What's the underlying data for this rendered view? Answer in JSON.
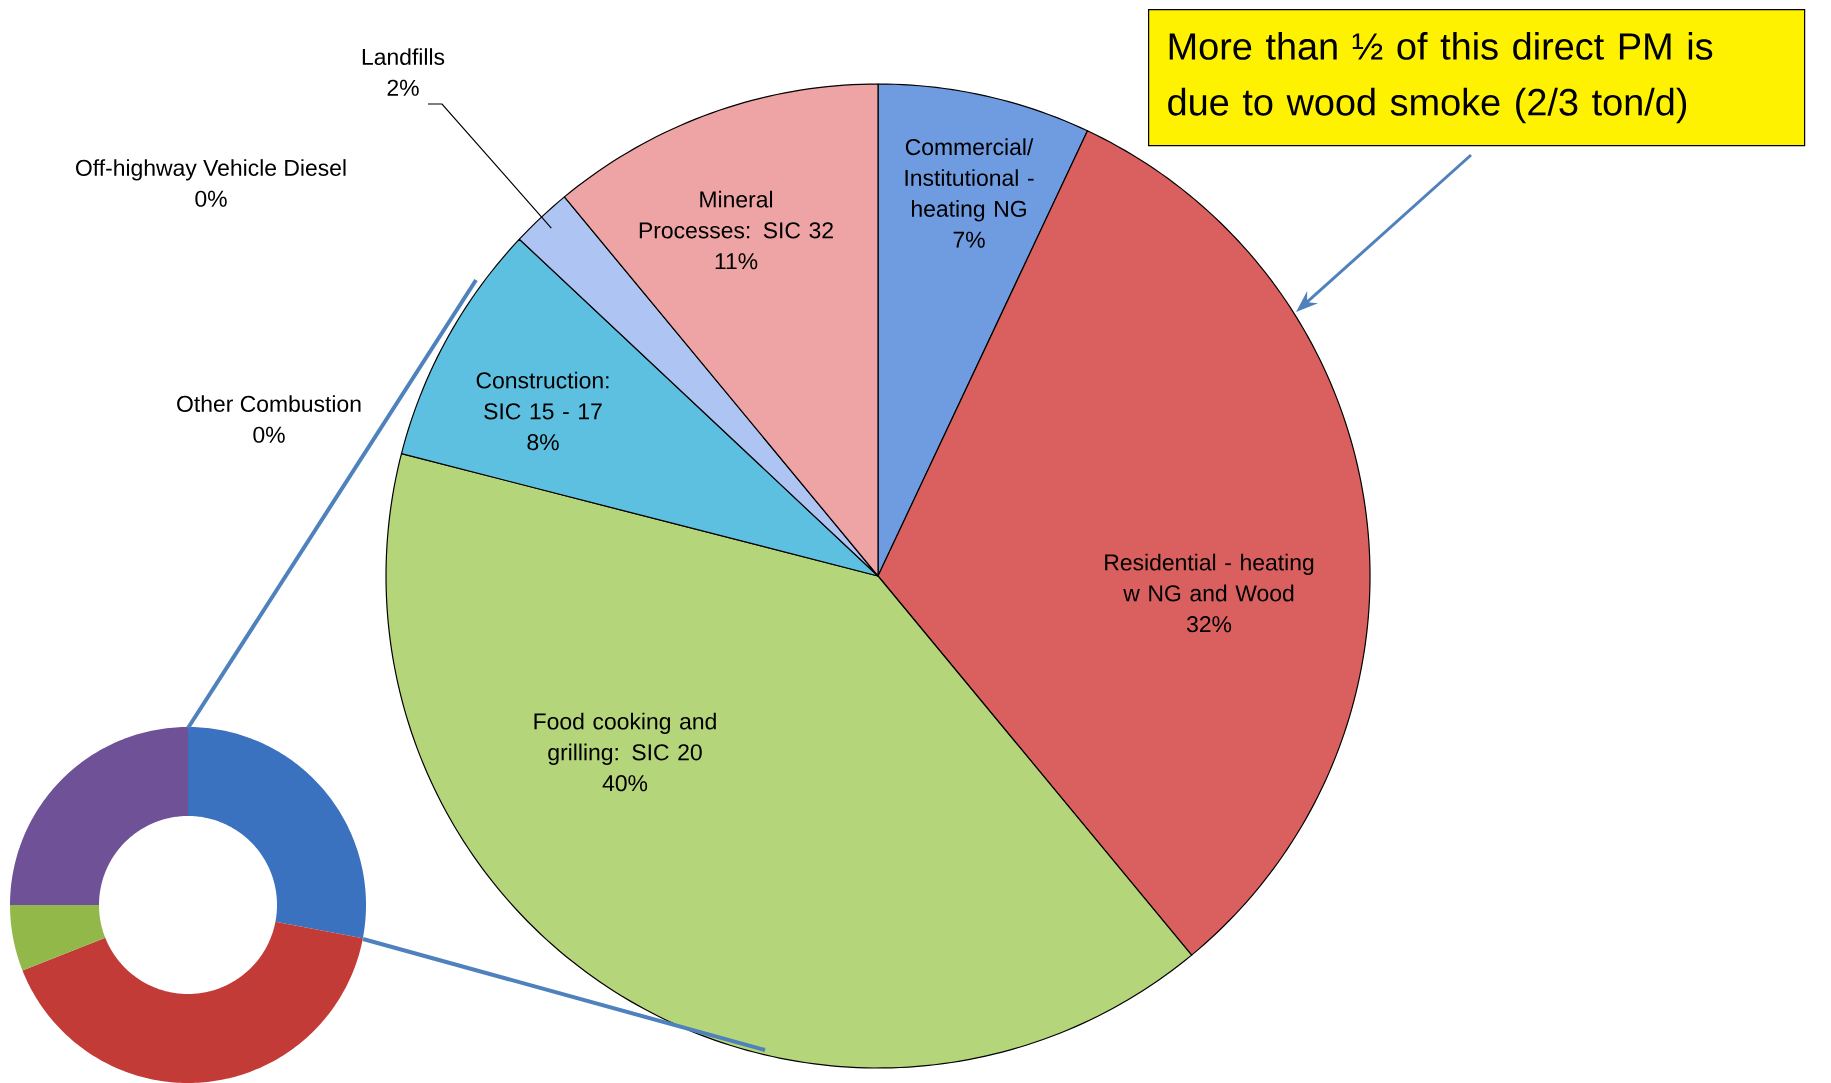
{
  "chart_data": [
    {
      "type": "pie",
      "categories": [
        "Commercial/ Institutional - heating NG",
        "Residential - heating w NG and Wood",
        "Food cooking and grilling: SIC 20",
        "Construction: SIC 15 - 17",
        "Other Combustion",
        "Off-highway Vehicle Diesel",
        "Landfills",
        "Mineral Processes: SIC 32"
      ],
      "values": [
        7,
        32,
        40,
        8,
        0,
        0,
        2,
        11
      ],
      "value_labels": [
        "7%",
        "32%",
        "40%",
        "8%",
        "0%",
        "0%",
        "2%",
        "11%"
      ],
      "colors": [
        "#6f9be0",
        "#d9605e",
        "#b5d57a",
        "#5ec0e0",
        "#9bbb59",
        "#8064a2",
        "#aec4f2",
        "#eea4a4"
      ],
      "annotations": [
        "More than ½ of this direct PM is due to wood smoke (2/3 ton/d)"
      ]
    },
    {
      "type": "donut",
      "categories": [
        null,
        null,
        null,
        null
      ],
      "values": [
        28,
        41,
        6,
        25
      ],
      "colors": [
        "#3a72c0",
        "#c23b37",
        "#93b84a",
        "#6e5196"
      ]
    }
  ]
}
